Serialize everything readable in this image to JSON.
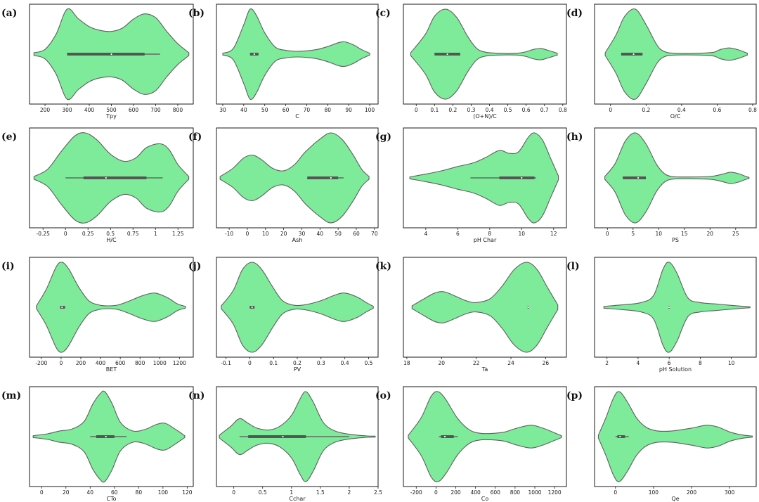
{
  "chart_data": [
    {
      "type": "violin",
      "panel": "(a)",
      "xlabel": "Tpy",
      "xlim": [
        130,
        870
      ],
      "xticks": [
        200,
        300,
        400,
        500,
        600,
        700,
        800
      ],
      "density": [
        [
          150,
          3
        ],
        [
          200,
          10
        ],
        [
          250,
          42
        ],
        [
          300,
          95
        ],
        [
          350,
          75
        ],
        [
          400,
          58
        ],
        [
          450,
          50
        ],
        [
          500,
          48
        ],
        [
          550,
          55
        ],
        [
          600,
          74
        ],
        [
          650,
          85
        ],
        [
          700,
          77
        ],
        [
          750,
          48
        ],
        [
          800,
          22
        ],
        [
          850,
          3
        ]
      ],
      "whisker": [
        300,
        720
      ],
      "box": [
        300,
        650
      ],
      "median": 500
    },
    {
      "type": "violin",
      "panel": "(b)",
      "xlabel": "C",
      "xlim": [
        27,
        104
      ],
      "xticks": [
        30,
        40,
        50,
        60,
        70,
        80,
        90,
        100
      ],
      "density": [
        [
          30,
          2
        ],
        [
          35,
          12
        ],
        [
          40,
          62
        ],
        [
          43,
          95
        ],
        [
          46,
          82
        ],
        [
          50,
          45
        ],
        [
          55,
          15
        ],
        [
          60,
          8
        ],
        [
          65,
          6
        ],
        [
          70,
          7
        ],
        [
          75,
          10
        ],
        [
          80,
          16
        ],
        [
          85,
          24
        ],
        [
          88,
          26
        ],
        [
          92,
          20
        ],
        [
          96,
          10
        ],
        [
          100,
          2
        ]
      ],
      "whisker": [
        43,
        47
      ],
      "box": [
        43,
        47
      ],
      "median": 45
    },
    {
      "type": "violin",
      "panel": "(c)",
      "xlabel": "(O+N)/C",
      "xlim": [
        -0.07,
        0.82
      ],
      "xticks": [
        0.0,
        0.1,
        0.2,
        0.3,
        0.4,
        0.5,
        0.6,
        0.7,
        0.8
      ],
      "density": [
        [
          -0.03,
          3
        ],
        [
          0.05,
          42
        ],
        [
          0.1,
          80
        ],
        [
          0.16,
          95
        ],
        [
          0.22,
          78
        ],
        [
          0.28,
          38
        ],
        [
          0.33,
          12
        ],
        [
          0.38,
          4
        ],
        [
          0.45,
          2
        ],
        [
          0.55,
          2
        ],
        [
          0.6,
          5
        ],
        [
          0.64,
          10
        ],
        [
          0.68,
          12
        ],
        [
          0.72,
          8
        ],
        [
          0.77,
          2
        ]
      ],
      "whisker": [
        0.1,
        0.24
      ],
      "box": [
        0.1,
        0.24
      ],
      "median": 0.17
    },
    {
      "type": "violin",
      "panel": "(d)",
      "xlabel": "O/C",
      "xlim": [
        -0.09,
        0.82
      ],
      "xticks": [
        0.0,
        0.2,
        0.4,
        0.6,
        0.8
      ],
      "density": [
        [
          -0.03,
          3
        ],
        [
          0.03,
          40
        ],
        [
          0.08,
          80
        ],
        [
          0.14,
          95
        ],
        [
          0.2,
          62
        ],
        [
          0.26,
          20
        ],
        [
          0.3,
          6
        ],
        [
          0.36,
          2
        ],
        [
          0.5,
          2
        ],
        [
          0.58,
          4
        ],
        [
          0.62,
          10
        ],
        [
          0.67,
          13
        ],
        [
          0.72,
          9
        ],
        [
          0.77,
          2
        ]
      ],
      "whisker": [
        0.06,
        0.18
      ],
      "box": [
        0.06,
        0.18
      ],
      "median": 0.13
    },
    {
      "type": "violin",
      "panel": "(e)",
      "xlabel": "H/C",
      "xlim": [
        -0.4,
        1.42
      ],
      "xticks": [
        -0.25,
        0.0,
        0.25,
        0.5,
        0.75,
        1.0,
        1.25
      ],
      "density": [
        [
          -0.35,
          3
        ],
        [
          -0.2,
          18
        ],
        [
          -0.05,
          55
        ],
        [
          0.1,
          88
        ],
        [
          0.22,
          95
        ],
        [
          0.35,
          80
        ],
        [
          0.5,
          50
        ],
        [
          0.65,
          35
        ],
        [
          0.78,
          42
        ],
        [
          0.9,
          64
        ],
        [
          1.05,
          72
        ],
        [
          1.15,
          60
        ],
        [
          1.25,
          28
        ],
        [
          1.37,
          3
        ]
      ],
      "whisker": [
        0.0,
        1.08
      ],
      "box": [
        0.2,
        0.9
      ],
      "median": 0.45
    },
    {
      "type": "violin",
      "panel": "(f)",
      "xlabel": "Ash",
      "xlim": [
        -17,
        72
      ],
      "xticks": [
        -10,
        0,
        10,
        20,
        30,
        40,
        50,
        60,
        70
      ],
      "density": [
        [
          -15,
          3
        ],
        [
          -8,
          20
        ],
        [
          -2,
          42
        ],
        [
          3,
          48
        ],
        [
          8,
          38
        ],
        [
          14,
          20
        ],
        [
          20,
          15
        ],
        [
          26,
          28
        ],
        [
          32,
          55
        ],
        [
          40,
          82
        ],
        [
          46,
          95
        ],
        [
          52,
          82
        ],
        [
          58,
          50
        ],
        [
          63,
          18
        ],
        [
          67,
          3
        ]
      ],
      "whisker": [
        33,
        53
      ],
      "box": [
        33,
        50
      ],
      "median": 46
    },
    {
      "type": "violin",
      "panel": "(g)",
      "xlabel": "pH Char",
      "xlim": [
        2.6,
        12.8
      ],
      "xticks": [
        4,
        6,
        8,
        10,
        12
      ],
      "density": [
        [
          3,
          2
        ],
        [
          4,
          8
        ],
        [
          5,
          15
        ],
        [
          6,
          24
        ],
        [
          7,
          32
        ],
        [
          7.8,
          44
        ],
        [
          8.6,
          58
        ],
        [
          9.2,
          52
        ],
        [
          9.8,
          55
        ],
        [
          10.4,
          85
        ],
        [
          10.8,
          95
        ],
        [
          11.3,
          80
        ],
        [
          11.8,
          42
        ],
        [
          12.3,
          4
        ]
      ],
      "whisker": [
        6.8,
        10.9
      ],
      "box": [
        8.6,
        10.8
      ],
      "median": 10.0
    },
    {
      "type": "violin",
      "panel": "(h)",
      "xlabel": "PS",
      "xlim": [
        -2.5,
        29
      ],
      "xticks": [
        0,
        5,
        10,
        15,
        20,
        25
      ],
      "density": [
        [
          -0.5,
          3
        ],
        [
          1.5,
          30
        ],
        [
          3.5,
          78
        ],
        [
          5.5,
          95
        ],
        [
          7.5,
          72
        ],
        [
          9.5,
          30
        ],
        [
          11,
          10
        ],
        [
          12.5,
          3
        ],
        [
          15,
          2
        ],
        [
          20,
          3
        ],
        [
          22.5,
          8
        ],
        [
          24,
          12
        ],
        [
          25.5,
          9
        ],
        [
          27,
          3
        ],
        [
          27.6,
          1
        ]
      ],
      "whisker": [
        3,
        7.5
      ],
      "box": [
        3,
        7.5
      ],
      "median": 6
    },
    {
      "type": "violin",
      "panel": "(i)",
      "xlabel": "BET",
      "xlim": [
        -320,
        1340
      ],
      "xticks": [
        -200,
        0,
        200,
        400,
        600,
        800,
        1000,
        1200
      ],
      "density": [
        [
          -250,
          3
        ],
        [
          -150,
          38
        ],
        [
          -50,
          85
        ],
        [
          10,
          95
        ],
        [
          80,
          80
        ],
        [
          180,
          42
        ],
        [
          280,
          14
        ],
        [
          380,
          5
        ],
        [
          480,
          3
        ],
        [
          580,
          5
        ],
        [
          700,
          14
        ],
        [
          820,
          24
        ],
        [
          950,
          30
        ],
        [
          1080,
          20
        ],
        [
          1180,
          7
        ],
        [
          1260,
          2
        ]
      ],
      "whisker": [
        -10,
        40
      ],
      "box": [
        -10,
        40
      ],
      "median": 10
    },
    {
      "type": "violin",
      "panel": "(j)",
      "xlabel": "PV",
      "xlim": [
        -0.14,
        0.54
      ],
      "xticks": [
        -0.1,
        0.0,
        0.1,
        0.2,
        0.3,
        0.4,
        0.5
      ],
      "density": [
        [
          -0.12,
          3
        ],
        [
          -0.07,
          35
        ],
        [
          -0.03,
          80
        ],
        [
          0.01,
          95
        ],
        [
          0.05,
          80
        ],
        [
          0.1,
          40
        ],
        [
          0.14,
          13
        ],
        [
          0.19,
          4
        ],
        [
          0.24,
          6
        ],
        [
          0.3,
          14
        ],
        [
          0.36,
          26
        ],
        [
          0.4,
          30
        ],
        [
          0.45,
          22
        ],
        [
          0.49,
          10
        ],
        [
          0.52,
          2
        ]
      ],
      "whisker": [
        0.0,
        0.02
      ],
      "box": [
        0.0,
        0.02
      ],
      "median": 0.01
    },
    {
      "type": "violin",
      "panel": "(k)",
      "xlabel": "Ta",
      "xlim": [
        17.8,
        27.2
      ],
      "xticks": [
        18,
        20,
        22,
        24,
        26
      ],
      "density": [
        [
          18.3,
          3
        ],
        [
          19,
          18
        ],
        [
          19.6,
          30
        ],
        [
          20.1,
          33
        ],
        [
          20.7,
          25
        ],
        [
          21.4,
          14
        ],
        [
          22,
          10
        ],
        [
          22.8,
          18
        ],
        [
          23.5,
          45
        ],
        [
          24.2,
          80
        ],
        [
          24.9,
          95
        ],
        [
          25.5,
          80
        ],
        [
          26.1,
          42
        ],
        [
          26.7,
          5
        ]
      ],
      "whisker": [
        25,
        25
      ],
      "box": [
        25,
        25
      ],
      "median": 25
    },
    {
      "type": "violin",
      "panel": "(l)",
      "xlabel": "pH Solution",
      "xlim": [
        1.2,
        11.6
      ],
      "xticks": [
        2,
        4,
        6,
        8,
        10
      ],
      "density": [
        [
          1.8,
          2
        ],
        [
          3,
          5
        ],
        [
          4.2,
          10
        ],
        [
          5,
          25
        ],
        [
          5.6,
          80
        ],
        [
          6,
          95
        ],
        [
          6.5,
          72
        ],
        [
          7.2,
          20
        ],
        [
          8,
          10
        ],
        [
          9,
          7
        ],
        [
          10,
          4
        ],
        [
          11.2,
          1
        ]
      ],
      "whisker": [
        6,
        6
      ],
      "box": [
        6,
        6
      ],
      "median": 6
    },
    {
      "type": "violin",
      "panel": "(m)",
      "xlabel": "CTo",
      "xlim": [
        -10,
        125
      ],
      "xticks": [
        0,
        20,
        40,
        60,
        80,
        100,
        120
      ],
      "density": [
        [
          -7,
          2
        ],
        [
          5,
          6
        ],
        [
          15,
          12
        ],
        [
          25,
          16
        ],
        [
          35,
          32
        ],
        [
          42,
          68
        ],
        [
          48,
          90
        ],
        [
          52,
          95
        ],
        [
          58,
          70
        ],
        [
          65,
          30
        ],
        [
          75,
          12
        ],
        [
          85,
          15
        ],
        [
          95,
          26
        ],
        [
          102,
          28
        ],
        [
          110,
          16
        ],
        [
          118,
          2
        ]
      ],
      "whisker": [
        40,
        70
      ],
      "box": [
        45,
        60
      ],
      "median": 53
    },
    {
      "type": "violin",
      "panel": "(n)",
      "xlabel": "Cchar",
      "xlim": [
        -0.3,
        2.5
      ],
      "xticks": [
        0.0,
        0.5,
        1.0,
        1.5,
        2.0,
        2.5
      ],
      "density": [
        [
          -0.25,
          3
        ],
        [
          -0.05,
          22
        ],
        [
          0.1,
          38
        ],
        [
          0.25,
          28
        ],
        [
          0.4,
          18
        ],
        [
          0.6,
          14
        ],
        [
          0.8,
          22
        ],
        [
          1.0,
          45
        ],
        [
          1.15,
          80
        ],
        [
          1.25,
          95
        ],
        [
          1.38,
          72
        ],
        [
          1.55,
          30
        ],
        [
          1.75,
          12
        ],
        [
          2.0,
          5
        ],
        [
          2.3,
          1.5
        ],
        [
          2.45,
          1
        ]
      ],
      "whisker": [
        0.1,
        2.0
      ],
      "box": [
        0.25,
        1.25
      ],
      "median": 0.85
    },
    {
      "type": "violin",
      "panel": "(o)",
      "xlabel": "Co",
      "xlim": [
        -330,
        1320
      ],
      "xticks": [
        -200,
        0,
        200,
        400,
        600,
        800,
        1000,
        1200
      ],
      "density": [
        [
          -280,
          3
        ],
        [
          -150,
          40
        ],
        [
          -50,
          85
        ],
        [
          20,
          95
        ],
        [
          100,
          78
        ],
        [
          220,
          38
        ],
        [
          340,
          14
        ],
        [
          450,
          7
        ],
        [
          580,
          7
        ],
        [
          700,
          10
        ],
        [
          820,
          18
        ],
        [
          960,
          24
        ],
        [
          1080,
          18
        ],
        [
          1200,
          8
        ],
        [
          1270,
          2
        ]
      ],
      "whisker": [
        30,
        220
      ],
      "box": [
        50,
        180
      ],
      "median": 90
    },
    {
      "type": "violin",
      "panel": "(p)",
      "xlabel": "Qe",
      "xlim": [
        -55,
        370
      ],
      "xticks": [
        0,
        100,
        200,
        300
      ],
      "density": [
        [
          -45,
          3
        ],
        [
          -25,
          40
        ],
        [
          -5,
          82
        ],
        [
          10,
          95
        ],
        [
          30,
          75
        ],
        [
          55,
          40
        ],
        [
          80,
          20
        ],
        [
          110,
          12
        ],
        [
          150,
          12
        ],
        [
          200,
          18
        ],
        [
          240,
          24
        ],
        [
          270,
          20
        ],
        [
          300,
          10
        ],
        [
          330,
          4
        ],
        [
          360,
          1
        ]
      ],
      "whisker": [
        0,
        35
      ],
      "box": [
        5,
        25
      ],
      "median": 12
    }
  ]
}
